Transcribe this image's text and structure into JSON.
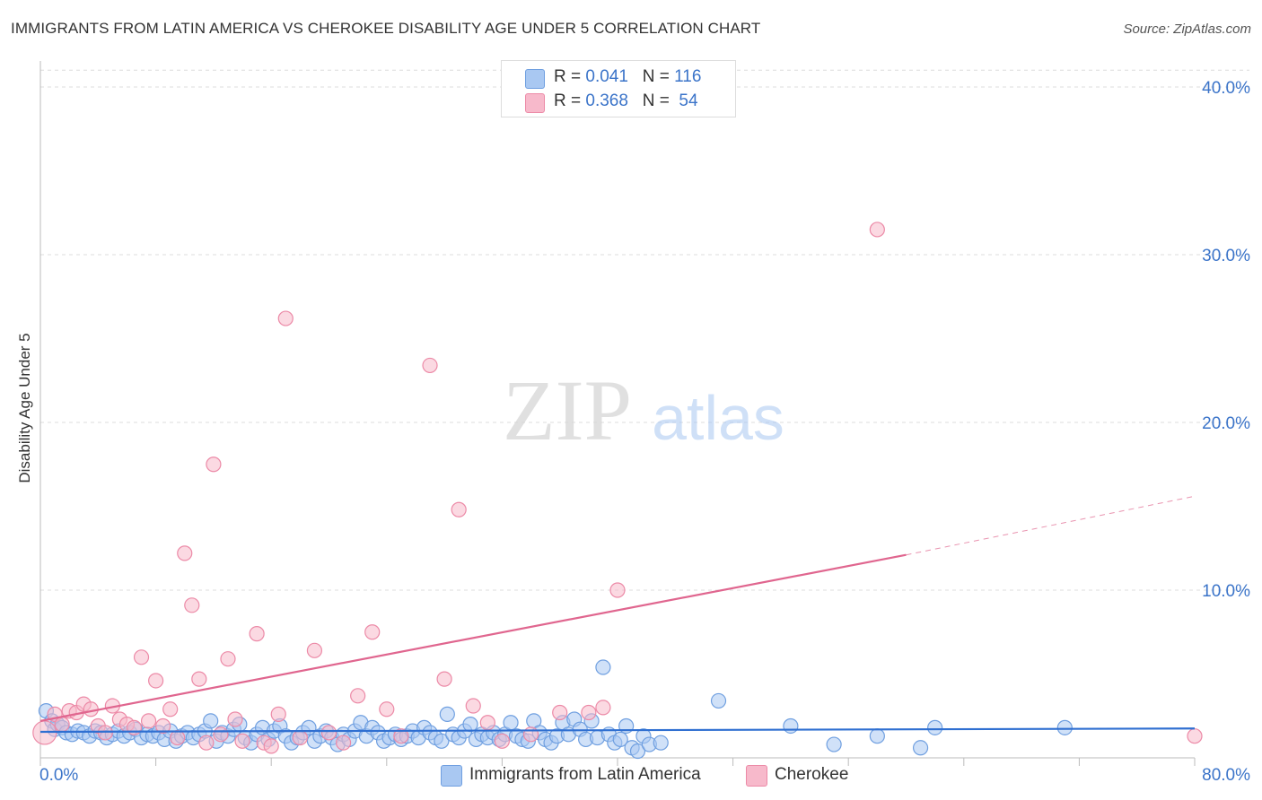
{
  "header": {
    "title": "IMMIGRANTS FROM LATIN AMERICA VS CHEROKEE DISABILITY AGE UNDER 5 CORRELATION CHART",
    "source": "Source: ZipAtlas.com"
  },
  "watermark": {
    "zip": "ZIP",
    "atlas": "atlas"
  },
  "legend": {
    "rows": [
      {
        "r_label": "R = ",
        "r_value": "0.041",
        "n_label": "N = ",
        "n_value": "116",
        "color": "#a9c8f2"
      },
      {
        "r_label": "R = ",
        "r_value": "0.368",
        "n_label": "N = ",
        "n_value": " 54",
        "color": "#f7b9cb"
      }
    ]
  },
  "chart_data": {
    "type": "scatter",
    "title": "IMMIGRANTS FROM LATIN AMERICA VS CHEROKEE DISABILITY AGE UNDER 5 CORRELATION CHART",
    "xlabel": "",
    "ylabel": "Disability Age Under 5",
    "xlim": [
      0,
      80
    ],
    "ylim": [
      0,
      42
    ],
    "x_tick_labels": [
      "0.0%",
      "80.0%"
    ],
    "y_ticks": [
      10,
      20,
      30,
      40
    ],
    "y_tick_labels": [
      "10.0%",
      "20.0%",
      "30.0%",
      "40.0%"
    ],
    "grid": true,
    "legend_position": "top-center",
    "series": [
      {
        "name": "Immigrants from Latin America",
        "color": "#a9c8f2",
        "edge": "#6f9fe0",
        "line_color": "#2f6fd1",
        "trend": {
          "x0": 0,
          "y0": 1.55,
          "x1": 80,
          "y1": 1.75
        },
        "points": [
          [
            0.4,
            2.8
          ],
          [
            0.8,
            2.2
          ],
          [
            1.0,
            1.7
          ],
          [
            1.2,
            2.0
          ],
          [
            1.5,
            1.8
          ],
          [
            1.8,
            1.5
          ],
          [
            2.2,
            1.4
          ],
          [
            2.6,
            1.6
          ],
          [
            3.0,
            1.5
          ],
          [
            3.4,
            1.3
          ],
          [
            3.8,
            1.6
          ],
          [
            4.2,
            1.5
          ],
          [
            4.6,
            1.2
          ],
          [
            5.0,
            1.4
          ],
          [
            5.4,
            1.6
          ],
          [
            5.8,
            1.3
          ],
          [
            6.2,
            1.5
          ],
          [
            6.6,
            1.7
          ],
          [
            7.0,
            1.2
          ],
          [
            7.4,
            1.4
          ],
          [
            7.8,
            1.3
          ],
          [
            8.2,
            1.5
          ],
          [
            8.6,
            1.1
          ],
          [
            9.0,
            1.6
          ],
          [
            9.4,
            1.0
          ],
          [
            9.8,
            1.3
          ],
          [
            10.2,
            1.5
          ],
          [
            10.6,
            1.2
          ],
          [
            11.0,
            1.4
          ],
          [
            11.4,
            1.6
          ],
          [
            11.8,
            2.2
          ],
          [
            12.2,
            1.0
          ],
          [
            12.6,
            1.5
          ],
          [
            13.0,
            1.3
          ],
          [
            13.4,
            1.7
          ],
          [
            13.8,
            2.0
          ],
          [
            14.2,
            1.2
          ],
          [
            14.6,
            0.9
          ],
          [
            15.0,
            1.4
          ],
          [
            15.4,
            1.8
          ],
          [
            15.8,
            1.1
          ],
          [
            16.2,
            1.6
          ],
          [
            16.6,
            1.9
          ],
          [
            17.0,
            1.3
          ],
          [
            17.4,
            0.9
          ],
          [
            17.8,
            1.2
          ],
          [
            18.2,
            1.5
          ],
          [
            18.6,
            1.8
          ],
          [
            19.0,
            1.0
          ],
          [
            19.4,
            1.3
          ],
          [
            19.8,
            1.6
          ],
          [
            20.2,
            1.2
          ],
          [
            20.6,
            0.8
          ],
          [
            21.0,
            1.4
          ],
          [
            21.4,
            1.1
          ],
          [
            21.8,
            1.6
          ],
          [
            22.2,
            2.1
          ],
          [
            22.6,
            1.3
          ],
          [
            23.0,
            1.8
          ],
          [
            23.4,
            1.5
          ],
          [
            23.8,
            1.0
          ],
          [
            24.2,
            1.2
          ],
          [
            24.6,
            1.4
          ],
          [
            25.0,
            1.1
          ],
          [
            25.4,
            1.3
          ],
          [
            25.8,
            1.6
          ],
          [
            26.2,
            1.2
          ],
          [
            26.6,
            1.8
          ],
          [
            27.0,
            1.5
          ],
          [
            27.4,
            1.2
          ],
          [
            27.8,
            1.0
          ],
          [
            28.2,
            2.6
          ],
          [
            28.6,
            1.4
          ],
          [
            29.0,
            1.2
          ],
          [
            29.4,
            1.6
          ],
          [
            29.8,
            2.0
          ],
          [
            30.2,
            1.1
          ],
          [
            30.6,
            1.4
          ],
          [
            31.0,
            1.2
          ],
          [
            31.4,
            1.5
          ],
          [
            31.8,
            1.1
          ],
          [
            32.2,
            1.4
          ],
          [
            32.6,
            2.1
          ],
          [
            33.0,
            1.3
          ],
          [
            33.4,
            1.1
          ],
          [
            33.8,
            1.0
          ],
          [
            34.2,
            2.2
          ],
          [
            34.6,
            1.5
          ],
          [
            35.0,
            1.1
          ],
          [
            35.4,
            0.9
          ],
          [
            35.8,
            1.3
          ],
          [
            36.2,
            2.1
          ],
          [
            36.6,
            1.4
          ],
          [
            37.0,
            2.3
          ],
          [
            37.4,
            1.7
          ],
          [
            37.8,
            1.1
          ],
          [
            38.2,
            2.2
          ],
          [
            38.6,
            1.2
          ],
          [
            39.0,
            5.4
          ],
          [
            39.4,
            1.4
          ],
          [
            39.8,
            0.9
          ],
          [
            40.2,
            1.1
          ],
          [
            40.6,
            1.9
          ],
          [
            41.0,
            0.6
          ],
          [
            41.4,
            0.4
          ],
          [
            41.8,
            1.3
          ],
          [
            42.2,
            0.8
          ],
          [
            43.0,
            0.9
          ],
          [
            47.0,
            3.4
          ],
          [
            52.0,
            1.9
          ],
          [
            55.0,
            0.8
          ],
          [
            58.0,
            1.3
          ],
          [
            61.0,
            0.6
          ],
          [
            62.0,
            1.8
          ],
          [
            71.0,
            1.8
          ]
        ]
      },
      {
        "name": "Cherokee",
        "color": "#f7b9cb",
        "edge": "#ec8aa7",
        "line_color": "#e0668f",
        "trend": {
          "x0": 0,
          "y0": 2.2,
          "x1": 60,
          "y1": 12.1
        },
        "trend_ext": {
          "x0": 60,
          "y0": 12.1,
          "x1": 80,
          "y1": 15.6
        },
        "points": [
          [
            0.3,
            1.5
          ],
          [
            1.0,
            2.6
          ],
          [
            1.5,
            2.0
          ],
          [
            2.0,
            2.8
          ],
          [
            2.5,
            2.7
          ],
          [
            3.0,
            3.2
          ],
          [
            3.5,
            2.9
          ],
          [
            4.0,
            1.9
          ],
          [
            4.5,
            1.5
          ],
          [
            5.0,
            3.1
          ],
          [
            5.5,
            2.3
          ],
          [
            6.0,
            2.0
          ],
          [
            6.5,
            1.8
          ],
          [
            7.0,
            6.0
          ],
          [
            7.5,
            2.2
          ],
          [
            8.0,
            4.6
          ],
          [
            8.5,
            1.9
          ],
          [
            9.0,
            2.9
          ],
          [
            9.5,
            1.2
          ],
          [
            10.0,
            12.2
          ],
          [
            10.5,
            9.1
          ],
          [
            11.0,
            4.7
          ],
          [
            11.5,
            0.9
          ],
          [
            12.0,
            17.5
          ],
          [
            12.5,
            1.4
          ],
          [
            13.0,
            5.9
          ],
          [
            13.5,
            2.3
          ],
          [
            14.0,
            1.0
          ],
          [
            15.0,
            7.4
          ],
          [
            15.5,
            0.9
          ],
          [
            16.0,
            0.7
          ],
          [
            16.5,
            2.6
          ],
          [
            17.0,
            26.2
          ],
          [
            18.0,
            1.2
          ],
          [
            19.0,
            6.4
          ],
          [
            20.0,
            1.5
          ],
          [
            21.0,
            0.9
          ],
          [
            22.0,
            3.7
          ],
          [
            23.0,
            7.5
          ],
          [
            24.0,
            2.9
          ],
          [
            25.0,
            1.3
          ],
          [
            27.0,
            23.4
          ],
          [
            28.0,
            4.7
          ],
          [
            29.0,
            14.8
          ],
          [
            30.0,
            3.1
          ],
          [
            31.0,
            2.1
          ],
          [
            32.0,
            1.0
          ],
          [
            34.0,
            1.4
          ],
          [
            36.0,
            2.7
          ],
          [
            38.0,
            2.7
          ],
          [
            39.0,
            3.0
          ],
          [
            40.0,
            10.0
          ],
          [
            58.0,
            31.5
          ],
          [
            80.0,
            1.3
          ]
        ]
      }
    ]
  }
}
